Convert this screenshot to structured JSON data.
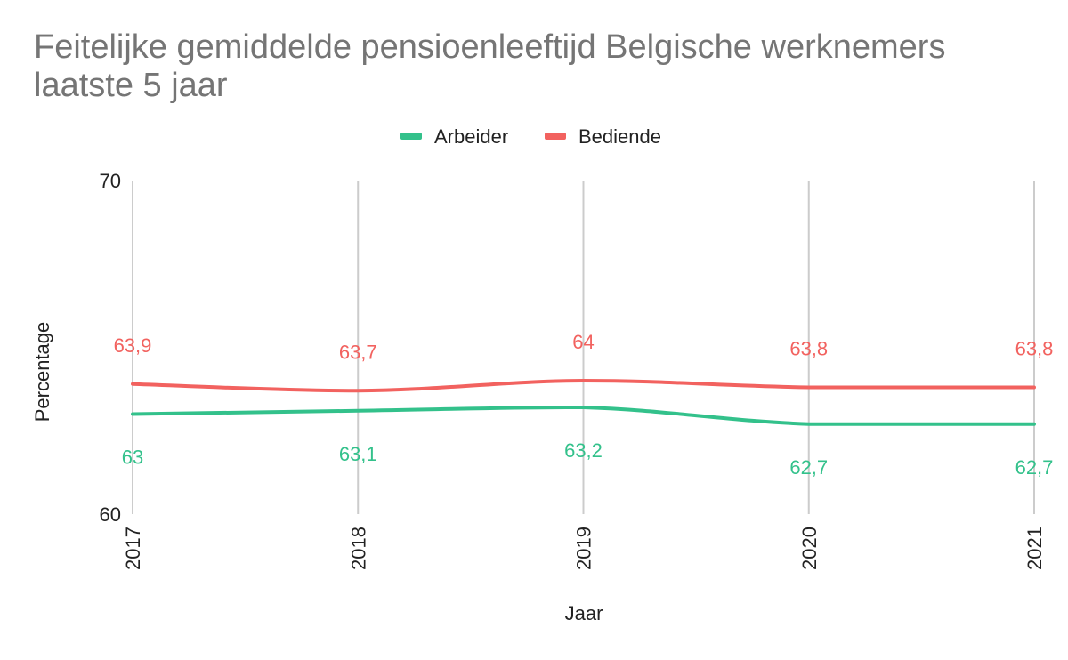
{
  "chart_data": {
    "type": "line",
    "title": "Feitelijke gemiddelde pensioenleeftijd Belgische werknemers laatste 5 jaar",
    "xlabel": "Jaar",
    "ylabel": "Percentage",
    "categories": [
      "2017",
      "2018",
      "2019",
      "2020",
      "2021"
    ],
    "ylim": [
      60,
      70
    ],
    "yticks": [
      "60",
      "70"
    ],
    "grid": "vertical",
    "legend": "top-center",
    "smooth": true,
    "series": [
      {
        "name": "Arbeider",
        "color": "#33c18b",
        "values": [
          63,
          63.1,
          63.2,
          62.7,
          62.7
        ],
        "labels": [
          "63",
          "63,1",
          "63,2",
          "62,7",
          "62,7"
        ],
        "label_position": "below"
      },
      {
        "name": "Bediende",
        "color": "#f2625f",
        "values": [
          63.9,
          63.7,
          64,
          63.8,
          63.8
        ],
        "labels": [
          "63,9",
          "63,7",
          "64",
          "63,8",
          "63,8"
        ],
        "label_position": "above"
      }
    ]
  }
}
